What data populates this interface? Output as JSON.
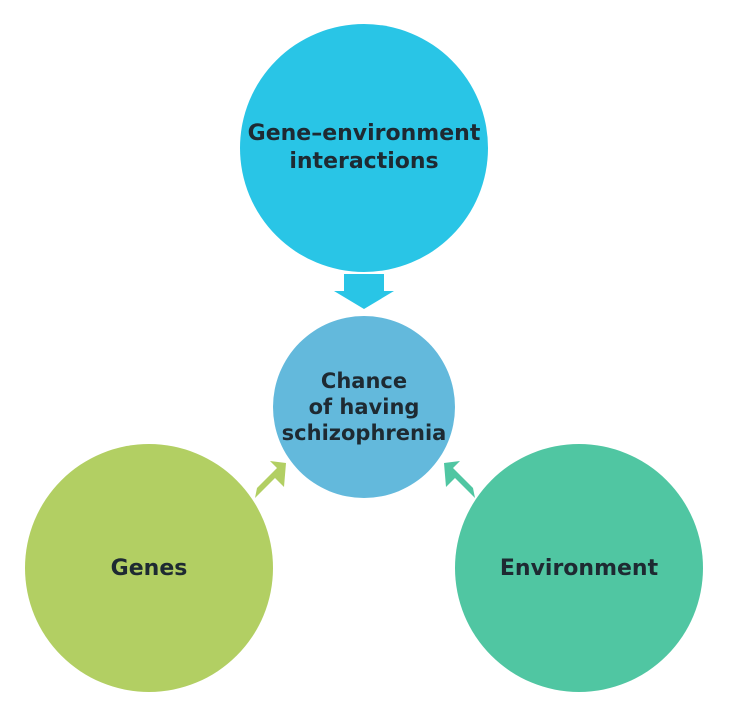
{
  "diagram": {
    "nodes": {
      "top": {
        "label": "Gene–environment\ninteractions",
        "color": "#29c5e6"
      },
      "center": {
        "label": "Chance\nof having\nschizophrenia",
        "color": "#63b9dc"
      },
      "left": {
        "label": "Genes",
        "color": "#b2cf63"
      },
      "right": {
        "label": "Environment",
        "color": "#50c6a2"
      }
    },
    "arrows": {
      "top_to_center": {
        "color": "#29c5e6"
      },
      "left_to_center": {
        "color": "#b2cf63"
      },
      "right_to_center": {
        "color": "#50c6a2"
      }
    }
  }
}
